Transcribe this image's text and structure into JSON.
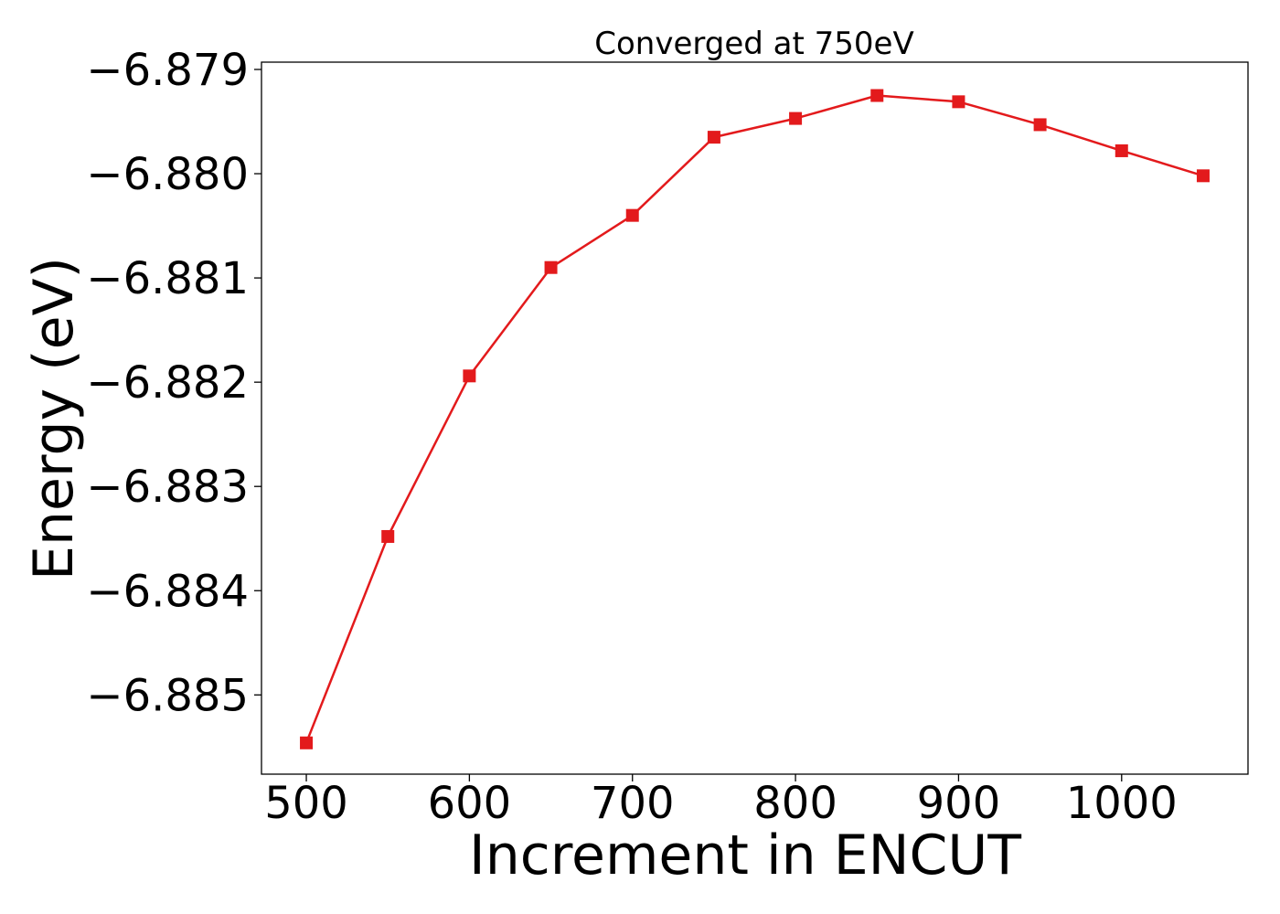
{
  "chart_data": {
    "type": "line",
    "title": "Converged at 750eV",
    "xlabel": "Increment in ENCUT",
    "ylabel": "Energy (eV)",
    "xlim": [
      472.5,
      1077.5
    ],
    "ylim": [
      -6.88576,
      -6.87893
    ],
    "xticks": [
      500,
      600,
      700,
      800,
      900,
      1000
    ],
    "xtick_labels": [
      "500",
      "600",
      "700",
      "800",
      "900",
      "1000"
    ],
    "yticks": [
      -6.885,
      -6.884,
      -6.883,
      -6.882,
      -6.881,
      -6.88,
      -6.879
    ],
    "ytick_labels": [
      "−6.885",
      "−6.884",
      "−6.883",
      "−6.882",
      "−6.881",
      "−6.880",
      "−6.879"
    ],
    "grid": false,
    "series": [
      {
        "color": "#e31a1c",
        "marker": "square",
        "x": [
          500,
          550,
          600,
          650,
          700,
          750,
          800,
          850,
          900,
          950,
          1000,
          1050
        ],
        "y": [
          -6.88546,
          -6.88348,
          -6.88194,
          -6.8809,
          -6.8804,
          -6.87965,
          -6.87947,
          -6.87925,
          -6.87931,
          -6.87953,
          -6.87978,
          -6.88002
        ]
      }
    ]
  }
}
